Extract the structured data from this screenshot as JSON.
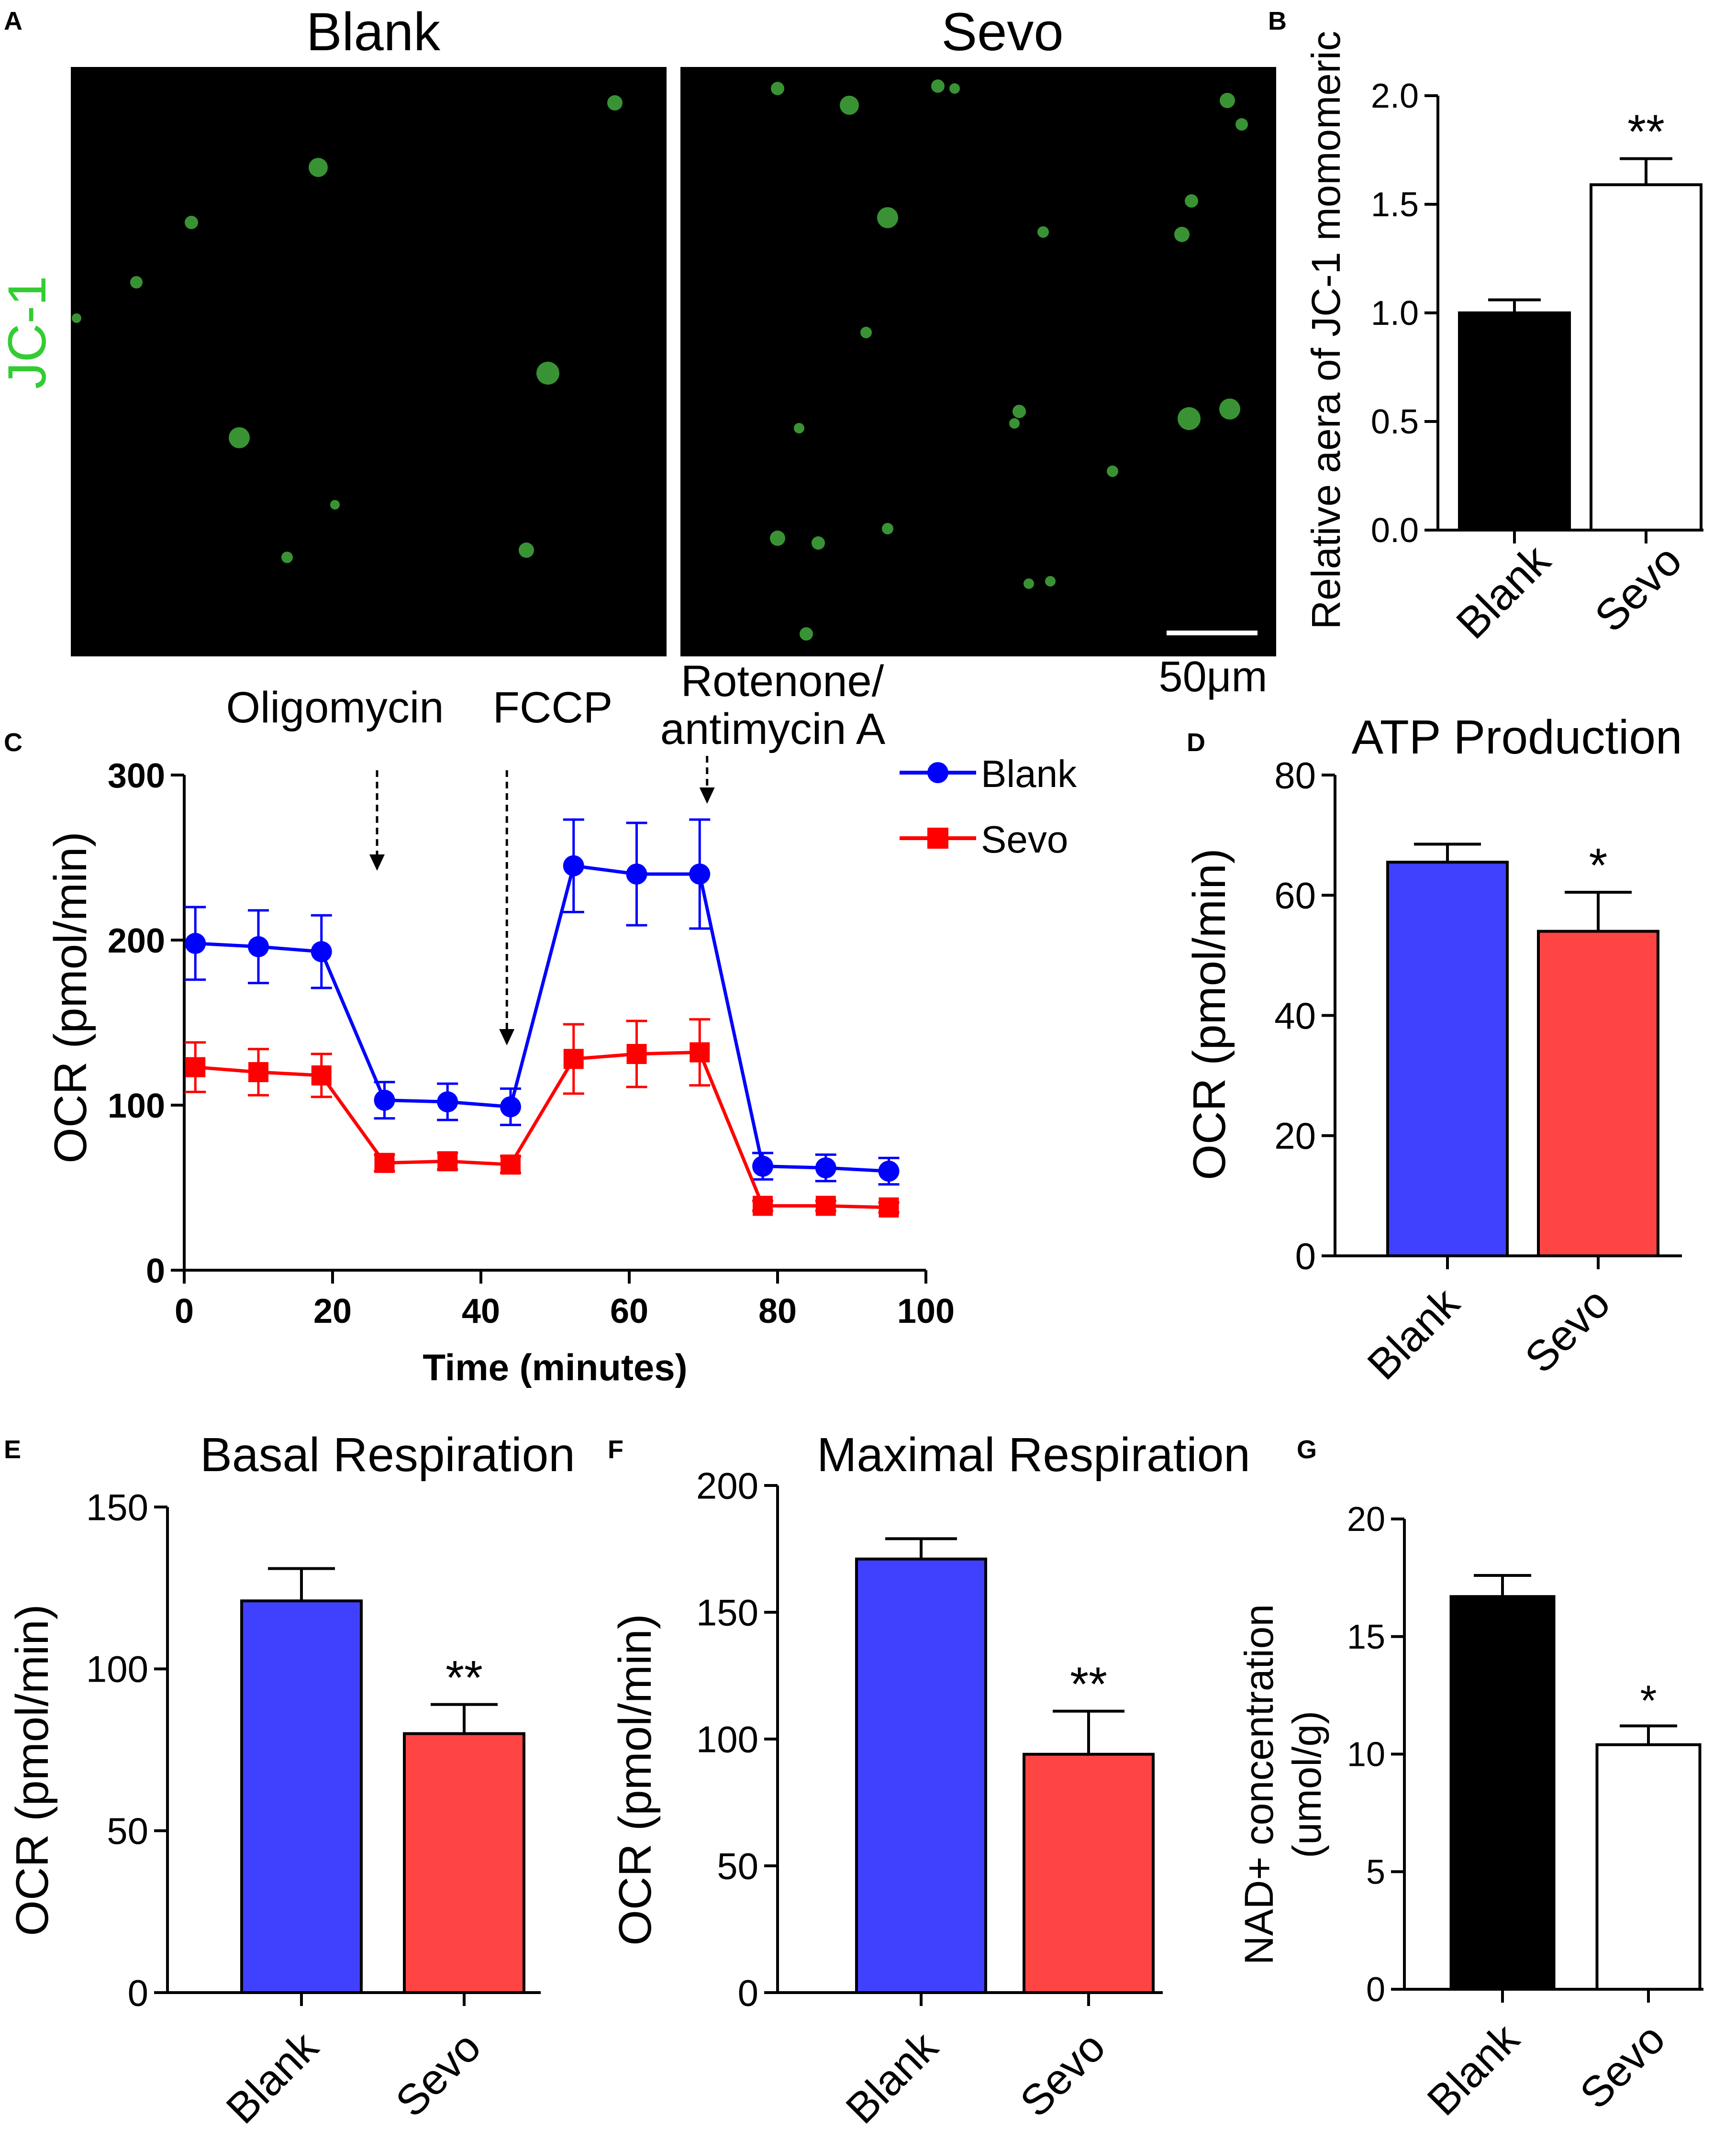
{
  "panels": {
    "A": {
      "letter": "A",
      "col_labels": [
        "Blank",
        "Sevo"
      ],
      "row_label": "JC-1",
      "row_label_color": "#33cc33",
      "scale_bar_label": "50μm",
      "cell_color": "#3fa33a"
    },
    "B": {
      "letter": "B"
    },
    "C": {
      "letter": "C"
    },
    "D": {
      "letter": "D"
    },
    "E": {
      "letter": "E"
    },
    "F": {
      "letter": "F"
    },
    "G": {
      "letter": "G"
    }
  },
  "chart_data": [
    {
      "id": "B",
      "type": "bar",
      "title": "",
      "xlabel": "",
      "ylabel": "Relative aera of JC-1 momomeric",
      "categories": [
        "Blank",
        "Sevo"
      ],
      "values": [
        1.0,
        1.59
      ],
      "errors": [
        0.06,
        0.12
      ],
      "ylim": [
        0,
        2.0
      ],
      "yticks": [
        0.0,
        0.5,
        1.0,
        1.5,
        2.0
      ],
      "ytick_labels": [
        "0.0",
        "0.5",
        "1.0",
        "1.5",
        "2.0"
      ],
      "colors": [
        "#000000",
        "#ffffff"
      ],
      "significance": [
        "",
        "**"
      ]
    },
    {
      "id": "C",
      "type": "line",
      "xlabel": "Time (minutes)",
      "ylabel": "OCR (pmol/min)",
      "xlim": [
        0,
        100
      ],
      "ylim": [
        0,
        300
      ],
      "xticks": [
        0,
        20,
        40,
        60,
        80,
        100
      ],
      "yticks": [
        0,
        100,
        200,
        300
      ],
      "x": [
        1.5,
        10,
        18.5,
        27,
        35.5,
        44,
        52.5,
        61,
        69.5,
        78,
        86.5,
        95
      ],
      "series": [
        {
          "name": "Blank",
          "color": "#0000ff",
          "marker": "circle",
          "values": [
            198,
            196,
            193,
            103,
            102,
            99,
            245,
            240,
            240,
            63,
            62,
            60
          ],
          "errors": [
            22,
            22,
            22,
            11,
            11,
            11,
            28,
            31,
            33,
            8,
            8,
            8
          ]
        },
        {
          "name": "Sevo",
          "color": "#ff0000",
          "marker": "square",
          "values": [
            123,
            120,
            118,
            65,
            66,
            64,
            128,
            131,
            132,
            39,
            39,
            38
          ],
          "errors": [
            15,
            14,
            13,
            5,
            5,
            5,
            21,
            20,
            20,
            3,
            3,
            3
          ]
        }
      ],
      "annotations": [
        {
          "text": "Oligomycin",
          "x": 26
        },
        {
          "text": "FCCP",
          "x": 43.5
        },
        {
          "text": "Rotenone/\nantimycin A",
          "x": 70.5
        }
      ],
      "legend": "top-right"
    },
    {
      "id": "D",
      "type": "bar",
      "title": "ATP Production",
      "ylabel": "OCR (pmol/min)",
      "categories": [
        "Blank",
        "Sevo"
      ],
      "values": [
        65.5,
        54
      ],
      "errors": [
        3,
        6.5
      ],
      "ylim": [
        0,
        80
      ],
      "yticks": [
        0,
        20,
        40,
        60,
        80
      ],
      "ytick_labels": [
        "0",
        "20",
        "40",
        "60",
        "80"
      ],
      "colors": [
        "#4040ff",
        "#ff4444"
      ],
      "significance": [
        "",
        "*"
      ]
    },
    {
      "id": "E",
      "type": "bar",
      "title": "Basal Respiration",
      "ylabel": "OCR (pmol/min)",
      "categories": [
        "Blank",
        "Sevo"
      ],
      "values": [
        121,
        80
      ],
      "errors": [
        10,
        9
      ],
      "ylim": [
        0,
        150
      ],
      "yticks": [
        0,
        50,
        100,
        150
      ],
      "ytick_labels": [
        "0",
        "50",
        "100",
        "150"
      ],
      "colors": [
        "#4040ff",
        "#ff4444"
      ],
      "significance": [
        "",
        "**"
      ]
    },
    {
      "id": "F",
      "type": "bar",
      "title": "Maximal Respiration",
      "ylabel": "OCR (pmol/min)",
      "categories": [
        "Blank",
        "Sevo"
      ],
      "values": [
        171,
        94
      ],
      "errors": [
        8,
        17
      ],
      "ylim": [
        0,
        200
      ],
      "yticks": [
        0,
        50,
        100,
        150,
        200
      ],
      "ytick_labels": [
        "0",
        "50",
        "100",
        "150",
        "200"
      ],
      "colors": [
        "#4040ff",
        "#ff4444"
      ],
      "significance": [
        "",
        "**"
      ]
    },
    {
      "id": "G",
      "type": "bar",
      "title": "",
      "ylabel": "NAD+ concentration\n(umol/g)",
      "categories": [
        "Blank",
        "Sevo"
      ],
      "values": [
        16.7,
        10.4
      ],
      "errors": [
        0.9,
        0.8
      ],
      "ylim": [
        0,
        20
      ],
      "yticks": [
        0,
        5,
        10,
        15,
        20
      ],
      "ytick_labels": [
        "0",
        "5",
        "10",
        "15",
        "20"
      ],
      "colors": [
        "#000000",
        "#ffffff"
      ],
      "significance": [
        "",
        "*"
      ]
    }
  ]
}
